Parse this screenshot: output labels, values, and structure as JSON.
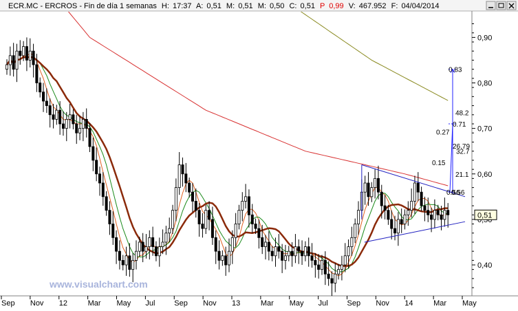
{
  "header": {
    "symbol": "ECR.MC",
    "name": "ERCROS",
    "period": "Fin de día 1 semanas",
    "h_label": "H:",
    "h_value": "17:37",
    "a_label": "A:",
    "a_value": "0,51",
    "m_label": "M:",
    "m_value": "0,51",
    "mn_label": "M:",
    "mn_value": "0,50",
    "c_label": "C:",
    "c_value": "0,51",
    "p_label": "P",
    "p_value": "0,99",
    "v_label": "V:",
    "v_value": "467.952",
    "f_label": "F:",
    "f_value": "04/04/2014"
  },
  "window_buttons": {
    "minimize_icon": "minimize-icon",
    "restore_icon": "restore-icon",
    "close_icon": "close-icon"
  },
  "watermark": "www.visualchart.com",
  "colors": {
    "candle_up": "#ffffff",
    "candle_down": "#000000",
    "ma_fast": "#e06020",
    "ma_green": "#1a8a1a",
    "ma_brown": "#8b2a0a",
    "ma_red": "#d83030",
    "ma_olive": "#8a8a20",
    "triangle": "#2020c0",
    "projection": "#2020ff",
    "watermark": "#a8b4dc"
  },
  "chart_data": {
    "type": "candlestick",
    "y_ticks": [
      "0,90",
      "0,80",
      "0,70",
      "0,60",
      "0,50",
      "0,40"
    ],
    "y_values": [
      0.9,
      0.8,
      0.7,
      0.6,
      0.5,
      0.4
    ],
    "ylim": [
      0.335,
      0.955
    ],
    "x_tick_labels": [
      "Sep",
      "Nov",
      "12",
      "Mar",
      "May",
      "Jul",
      "Sep",
      "Nov",
      "13",
      "Mar",
      "May",
      "Jul",
      "Sep",
      "Nov",
      "14",
      "Mar",
      "May"
    ],
    "last_price_label": "0,51",
    "last_price": 0.51,
    "projection_labels": [
      "0.83",
      "48.2",
      "0.71",
      "0.27",
      "26.79",
      "32.7",
      "0.15",
      "21.1",
      "0.56",
      "0.56"
    ],
    "projection_values": [
      0.83,
      0.71,
      0.56
    ],
    "triangle": {
      "upper_start": 0.62,
      "upper_end": 0.55,
      "lower_start": 0.45,
      "lower_end": 0.495
    },
    "ma_red_anchor": [
      [
        0,
        1.12
      ],
      [
        25,
        0.9
      ],
      [
        60,
        0.74
      ],
      [
        90,
        0.65
      ],
      [
        120,
        0.6
      ],
      [
        145,
        0.55
      ]
    ],
    "ma_olive_anchor": [
      [
        30,
        1.2
      ],
      [
        80,
        1.0
      ],
      [
        110,
        0.85
      ],
      [
        145,
        0.715
      ]
    ],
    "closes": [
      0.84,
      0.86,
      0.83,
      0.87,
      0.86,
      0.88,
      0.85,
      0.87,
      0.84,
      0.8,
      0.78,
      0.76,
      0.75,
      0.73,
      0.72,
      0.74,
      0.71,
      0.7,
      0.72,
      0.73,
      0.71,
      0.69,
      0.7,
      0.72,
      0.7,
      0.66,
      0.63,
      0.6,
      0.58,
      0.55,
      0.52,
      0.49,
      0.46,
      0.43,
      0.41,
      0.4,
      0.42,
      0.39,
      0.41,
      0.43,
      0.45,
      0.43,
      0.44,
      0.46,
      0.44,
      0.42,
      0.44,
      0.45,
      0.47,
      0.48,
      0.52,
      0.57,
      0.62,
      0.6,
      0.58,
      0.56,
      0.54,
      0.52,
      0.49,
      0.48,
      0.52,
      0.5,
      0.46,
      0.43,
      0.41,
      0.42,
      0.4,
      0.43,
      0.46,
      0.49,
      0.52,
      0.54,
      0.55,
      0.51,
      0.49,
      0.48,
      0.46,
      0.44,
      0.45,
      0.43,
      0.42,
      0.44,
      0.43,
      0.41,
      0.42,
      0.43,
      0.42,
      0.44,
      0.43,
      0.42,
      0.44,
      0.42,
      0.41,
      0.4,
      0.39,
      0.41,
      0.38,
      0.37,
      0.36,
      0.38,
      0.39,
      0.4,
      0.42,
      0.44,
      0.46,
      0.49,
      0.52,
      0.56,
      0.58,
      0.55,
      0.57,
      0.59,
      0.56,
      0.53,
      0.52,
      0.5,
      0.48,
      0.47,
      0.5,
      0.49,
      0.51,
      0.52,
      0.54,
      0.58,
      0.56,
      0.53,
      0.52,
      0.51,
      0.5,
      0.52,
      0.51,
      0.5,
      0.52,
      0.51
    ]
  }
}
